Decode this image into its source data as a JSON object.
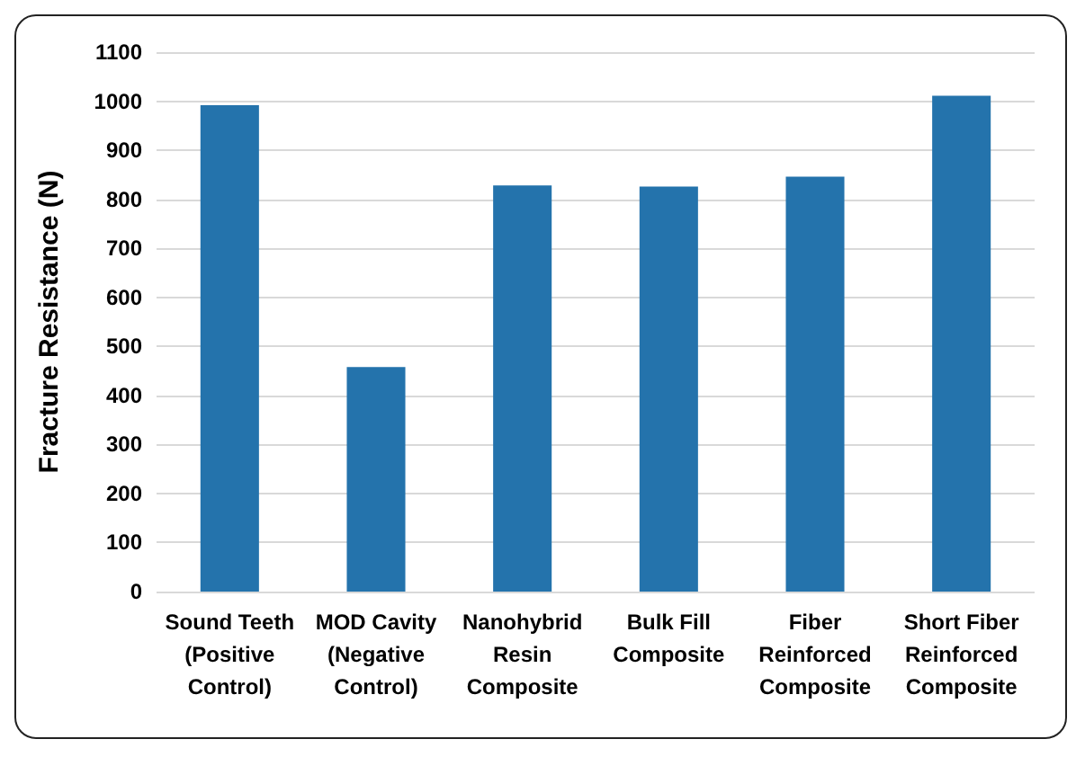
{
  "chart_data": {
    "type": "bar",
    "ylabel": "Fracture Resistance (N)",
    "categories": [
      "Sound Teeth\n(Positive\nControl)",
      "MOD Cavity\n(Negative\nControl)",
      "Nanohybrid\nResin\nComposite",
      "Bulk Fill\nComposite",
      "Fiber\nReinforced\nComposite",
      "Short Fiber\nReinforced\nComposite"
    ],
    "values": [
      992,
      458,
      828,
      826,
      846,
      1011
    ],
    "color": "#2473ac",
    "ylim": [
      0,
      1100
    ],
    "yticks": [
      0,
      100,
      200,
      300,
      400,
      500,
      600,
      700,
      800,
      900,
      1000,
      1100
    ],
    "grid": "y"
  }
}
